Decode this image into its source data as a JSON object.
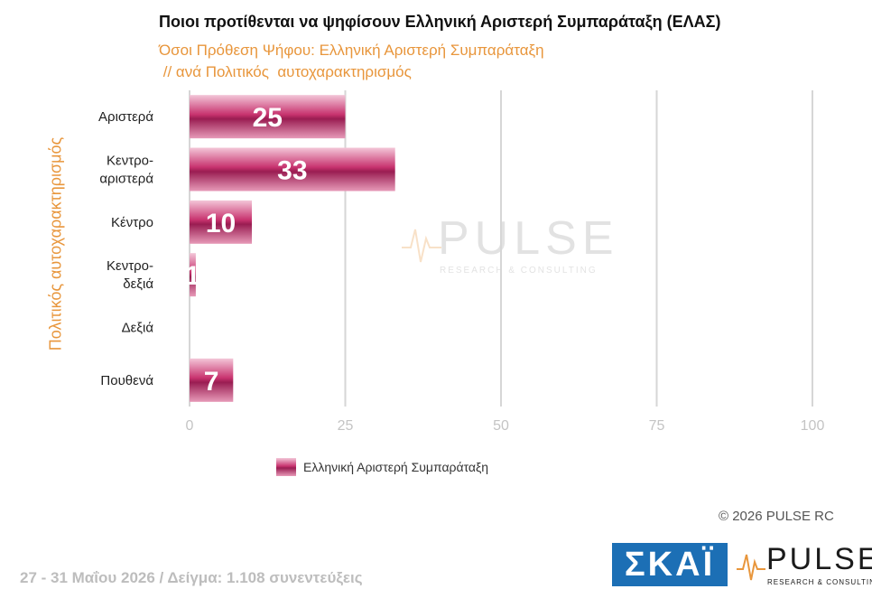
{
  "title": "Ποιοι προτίθενται να ψηφίσουν Ελληνική Αριστερή Συμπαράταξη (ΕΛΑΣ)",
  "subtitle_line1": "Όσοι Πρόθεση Ψήφου: Ελληνική Αριστερή Συμπαράταξη",
  "subtitle_line2": " // ανά Πολιτικός  αυτοχαρακτηρισμός",
  "footer": "27 - 31  Μαΐου 2026  /  Δείγμα:  1.108 συνεντεύξεις",
  "copyright": "©  2026  PULSE RC",
  "logos": {
    "skai_text": "ΣΚΑΪ",
    "pulse_text": "PULSE",
    "pulse_sub": "RESEARCH & CONSULTING",
    "watermark_text": "PULSE",
    "watermark_sub": "RESEARCH & CONSULTING"
  },
  "colors": {
    "bar": "#C8336F",
    "bar_dark": "#9A1D52",
    "bar_light": "#F3C6D8",
    "accent": "#E8963C",
    "grid": "#D6D6D6",
    "skai": "#1C6FB5"
  },
  "chart_data": {
    "type": "bar",
    "orientation": "horizontal",
    "ylabel": "Πολιτικός  αυτοχαρακτηρισμός",
    "categories": [
      [
        "Αριστερά"
      ],
      [
        "Κεντρο-",
        "αριστερά"
      ],
      [
        "Κέντρο"
      ],
      [
        "Κεντρο-",
        "δεξιά"
      ],
      [
        "Δεξιά"
      ],
      [
        "Πουθενά"
      ]
    ],
    "series": [
      {
        "name": "Ελληνική Αριστερή Συμπαράταξη",
        "values": [
          25,
          33,
          10,
          1,
          0,
          7
        ],
        "labels": [
          "25",
          "33",
          "10",
          "1",
          "",
          "7"
        ]
      }
    ],
    "xlim": [
      0,
      100
    ],
    "xticks": [
      0,
      25,
      50,
      75,
      100
    ],
    "grid": true,
    "legend": "bottom"
  }
}
